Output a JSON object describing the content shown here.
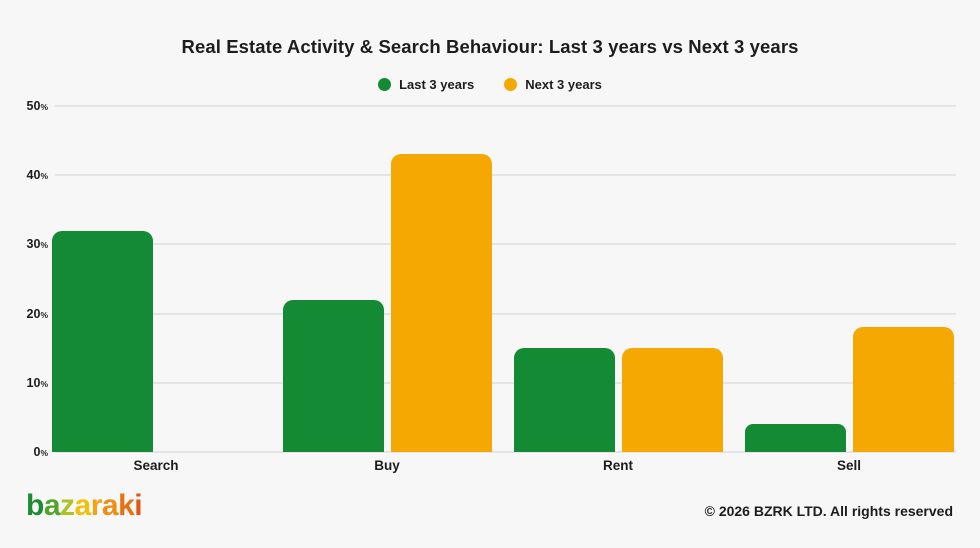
{
  "title": "Real Estate Activity & Search Behaviour: Last 3 years vs Next 3 years",
  "legend": [
    {
      "label": "Last 3 years",
      "color": "#148a34"
    },
    {
      "label": "Next 3 years",
      "color": "#f6a802"
    }
  ],
  "chart_data": {
    "type": "bar",
    "title": "Real Estate Activity & Search Behaviour: Last 3 years vs Next 3 years",
    "categories": [
      "Search",
      "Buy",
      "Rent",
      "Sell"
    ],
    "series": [
      {
        "name": "Last 3 years",
        "color": "#148a34",
        "values": [
          32,
          22,
          15,
          4
        ]
      },
      {
        "name": "Next 3 years",
        "color": "#f6a802",
        "values": [
          0,
          43,
          15,
          18
        ]
      }
    ],
    "xlabel": "",
    "ylabel": "",
    "ylim": [
      0,
      50
    ],
    "yticks": [
      0,
      10,
      20,
      30,
      40,
      50
    ],
    "ytick_suffix": "%",
    "grid": true,
    "legend_position": "top-center"
  },
  "footer": {
    "logo_name": "bazaraki",
    "logo_letters": [
      {
        "char": "b",
        "color": "#1e8a35"
      },
      {
        "char": "a",
        "color": "#55a42a"
      },
      {
        "char": "z",
        "color": "#afc223"
      },
      {
        "char": "a",
        "color": "#eec30a"
      },
      {
        "char": "r",
        "color": "#f2a513"
      },
      {
        "char": "a",
        "color": "#ee8c13"
      },
      {
        "char": "k",
        "color": "#ea7112"
      },
      {
        "char": "i",
        "color": "#e55310"
      }
    ],
    "copyright": "© 2026 BZRK LTD. All rights reserved"
  },
  "colors": {
    "background": "#f7f7f7",
    "gridline": "#e4e4e4",
    "text": "#1d1d1f"
  }
}
